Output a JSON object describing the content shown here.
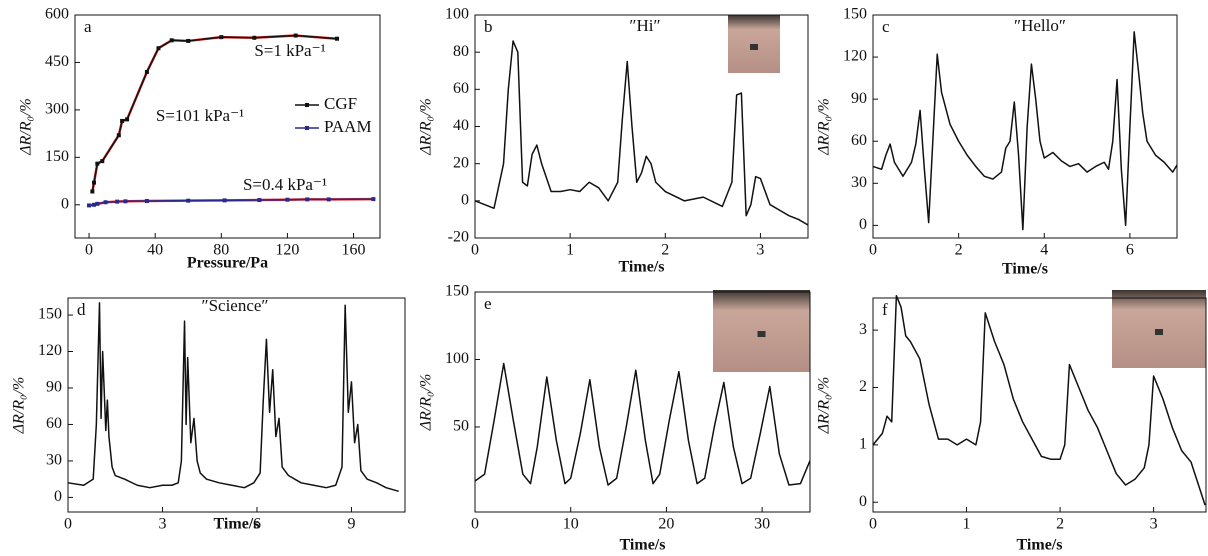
{
  "chart_data": [
    {
      "type": "line",
      "panel": "a",
      "x_label": "Pressure/Pa",
      "y_label": "ΔR/R₀/%",
      "xlim": [
        -8.5,
        176
      ],
      "ylim": [
        -105,
        600
      ],
      "xticks": [
        0,
        40,
        80,
        120,
        160
      ],
      "yticks": [
        0,
        150,
        300,
        450,
        600
      ],
      "fit_color": "#d62728",
      "annotations": [
        "S=1 kPa⁻¹",
        "S=101 kPa⁻¹",
        "S=0.4 kPa⁻¹"
      ],
      "series": [
        {
          "name": "CGF",
          "color": "#111111",
          "x": [
            2,
            3,
            5,
            8,
            18,
            20,
            23,
            35,
            42,
            50,
            60,
            80,
            100,
            125,
            150
          ],
          "values": [
            42,
            70,
            130,
            138,
            220,
            265,
            270,
            420,
            495,
            520,
            518,
            530,
            528,
            535,
            525
          ]
        },
        {
          "name": "PAAM",
          "color": "#2a2a8c",
          "x": [
            0,
            3,
            5,
            10,
            17,
            22,
            35,
            60,
            82,
            103,
            120,
            132,
            145,
            172
          ],
          "values": [
            -2,
            0,
            3,
            8,
            10,
            11,
            12,
            13,
            14,
            15,
            16,
            17,
            17,
            18
          ]
        }
      ]
    },
    {
      "type": "line",
      "panel": "b",
      "title": "″Hi″",
      "x_label": "Time/s",
      "y_label": "ΔR/R₀/%",
      "color": "#111111",
      "xlim": [
        0,
        3.5
      ],
      "ylim": [
        -20,
        100
      ],
      "xticks": [
        0,
        1,
        2,
        3
      ],
      "yticks": [
        -20,
        0,
        20,
        40,
        60,
        80,
        100
      ],
      "x": [
        0,
        0.1,
        0.2,
        0.3,
        0.35,
        0.4,
        0.45,
        0.5,
        0.55,
        0.6,
        0.65,
        0.7,
        0.8,
        0.9,
        1.0,
        1.1,
        1.2,
        1.3,
        1.4,
        1.5,
        1.55,
        1.6,
        1.65,
        1.7,
        1.75,
        1.8,
        1.85,
        1.9,
        2.0,
        2.2,
        2.4,
        2.6,
        2.7,
        2.75,
        2.8,
        2.85,
        2.9,
        2.95,
        3.0,
        3.05,
        3.1,
        3.2,
        3.3,
        3.4,
        3.5
      ],
      "values": [
        0,
        -2,
        -4,
        20,
        60,
        86,
        80,
        10,
        8,
        25,
        30,
        20,
        5,
        5,
        6,
        5,
        10,
        7,
        0,
        10,
        45,
        75,
        40,
        10,
        15,
        24,
        20,
        10,
        5,
        0,
        2,
        -3,
        10,
        57,
        58,
        -8,
        -2,
        13,
        12,
        5,
        -2,
        -5,
        -8,
        -10,
        -13
      ]
    },
    {
      "type": "line",
      "panel": "c",
      "title": "″Hello″",
      "x_label": "Time/s",
      "y_label": "ΔR/R₀/%",
      "color": "#111111",
      "xlim": [
        0,
        7.1
      ],
      "ylim": [
        -9,
        150
      ],
      "xticks": [
        0,
        2,
        4,
        6
      ],
      "yticks": [
        0,
        30,
        60,
        90,
        120,
        150
      ],
      "x": [
        0,
        0.2,
        0.3,
        0.4,
        0.5,
        0.7,
        0.9,
        1.0,
        1.1,
        1.2,
        1.3,
        1.5,
        1.6,
        1.8,
        2.0,
        2.2,
        2.4,
        2.6,
        2.8,
        3.0,
        3.1,
        3.2,
        3.3,
        3.4,
        3.5,
        3.6,
        3.7,
        3.8,
        3.9,
        4.0,
        4.2,
        4.4,
        4.6,
        4.8,
        5.0,
        5.2,
        5.4,
        5.5,
        5.6,
        5.7,
        5.8,
        5.9,
        6.0,
        6.1,
        6.2,
        6.3,
        6.4,
        6.6,
        6.8,
        7.0,
        7.1
      ],
      "values": [
        42,
        40,
        50,
        58,
        45,
        35,
        45,
        58,
        82,
        40,
        2,
        122,
        95,
        72,
        60,
        50,
        42,
        35,
        33,
        38,
        55,
        60,
        88,
        50,
        -3,
        70,
        115,
        90,
        60,
        48,
        52,
        46,
        42,
        44,
        38,
        42,
        45,
        40,
        60,
        104,
        40,
        0,
        70,
        138,
        110,
        80,
        60,
        50,
        45,
        38,
        43
      ]
    },
    {
      "type": "line",
      "panel": "d",
      "title": "″Science″",
      "x_label": "Time/s",
      "y_label": "ΔR/R₀/%",
      "color": "#111111",
      "xlim": [
        0,
        10.7
      ],
      "ylim": [
        -12,
        164
      ],
      "xticks": [
        0,
        3,
        6,
        9
      ],
      "yticks": [
        0,
        30,
        60,
        90,
        120,
        150
      ],
      "x": [
        0,
        0.5,
        0.8,
        0.9,
        1.0,
        1.05,
        1.1,
        1.2,
        1.25,
        1.3,
        1.4,
        1.5,
        1.8,
        2.2,
        2.6,
        3.0,
        3.3,
        3.5,
        3.6,
        3.7,
        3.75,
        3.8,
        3.9,
        4.0,
        4.1,
        4.2,
        4.4,
        4.8,
        5.2,
        5.6,
        5.9,
        6.1,
        6.2,
        6.3,
        6.4,
        6.5,
        6.6,
        6.7,
        6.8,
        7.0,
        7.4,
        7.8,
        8.2,
        8.5,
        8.7,
        8.8,
        8.9,
        9.0,
        9.1,
        9.2,
        9.3,
        9.5,
        9.8,
        10.1,
        10.5
      ],
      "values": [
        12,
        10,
        15,
        60,
        160,
        65,
        120,
        55,
        80,
        50,
        25,
        18,
        15,
        10,
        8,
        10,
        10,
        12,
        30,
        145,
        60,
        115,
        45,
        65,
        30,
        20,
        15,
        12,
        10,
        8,
        12,
        20,
        80,
        130,
        70,
        105,
        50,
        65,
        25,
        18,
        12,
        10,
        8,
        10,
        25,
        158,
        70,
        95,
        45,
        60,
        22,
        15,
        12,
        8,
        5
      ]
    },
    {
      "type": "line",
      "panel": "e",
      "x_label": "Time/s",
      "y_label": "ΔR/R₀/%",
      "color": "#111111",
      "xlim": [
        0,
        35
      ],
      "ylim": [
        -13,
        150
      ],
      "xticks": [
        0,
        10,
        20,
        30
      ],
      "yticks": [
        50,
        100,
        150
      ],
      "x": [
        0,
        1,
        2,
        3,
        4,
        5,
        5.8,
        6.5,
        7.5,
        8.5,
        9.4,
        10,
        11,
        12,
        13,
        13.9,
        14.8,
        15.8,
        16.8,
        17.8,
        18.6,
        19.3,
        20.3,
        21.3,
        22.3,
        23.2,
        24,
        25,
        26,
        27,
        27.9,
        28.8,
        29.8,
        30.8,
        31.8,
        32.8,
        34,
        35
      ],
      "values": [
        10,
        15,
        55,
        97,
        55,
        15,
        8,
        35,
        87,
        40,
        8,
        12,
        45,
        85,
        35,
        7,
        12,
        50,
        92,
        40,
        8,
        15,
        55,
        91,
        40,
        8,
        12,
        50,
        83,
        35,
        8,
        12,
        45,
        80,
        30,
        7,
        8,
        25
      ]
    },
    {
      "type": "line",
      "panel": "f",
      "x_label": "Time/s",
      "y_label": "ΔR/R₀/%",
      "color": "#111111",
      "xlim": [
        0,
        3.56
      ],
      "ylim": [
        -0.17,
        3.56
      ],
      "xticks": [
        0,
        1,
        2,
        3
      ],
      "yticks": [
        0,
        1,
        2,
        3
      ],
      "x": [
        0,
        0.1,
        0.15,
        0.2,
        0.25,
        0.3,
        0.35,
        0.4,
        0.5,
        0.6,
        0.7,
        0.8,
        0.9,
        1.0,
        1.1,
        1.15,
        1.2,
        1.3,
        1.4,
        1.5,
        1.6,
        1.7,
        1.8,
        1.9,
        2.0,
        2.05,
        2.1,
        2.2,
        2.3,
        2.4,
        2.5,
        2.6,
        2.7,
        2.8,
        2.9,
        2.95,
        3.0,
        3.1,
        3.2,
        3.3,
        3.4,
        3.5,
        3.55
      ],
      "values": [
        1.0,
        1.2,
        1.5,
        1.4,
        3.6,
        3.4,
        2.9,
        2.8,
        2.5,
        1.7,
        1.1,
        1.1,
        1.0,
        1.1,
        1.0,
        1.4,
        3.3,
        2.8,
        2.4,
        1.8,
        1.4,
        1.1,
        0.8,
        0.75,
        0.75,
        1.0,
        2.4,
        2.0,
        1.6,
        1.3,
        0.9,
        0.5,
        0.3,
        0.4,
        0.6,
        1.0,
        2.2,
        1.8,
        1.3,
        0.9,
        0.7,
        0.2,
        -0.05
      ]
    }
  ]
}
